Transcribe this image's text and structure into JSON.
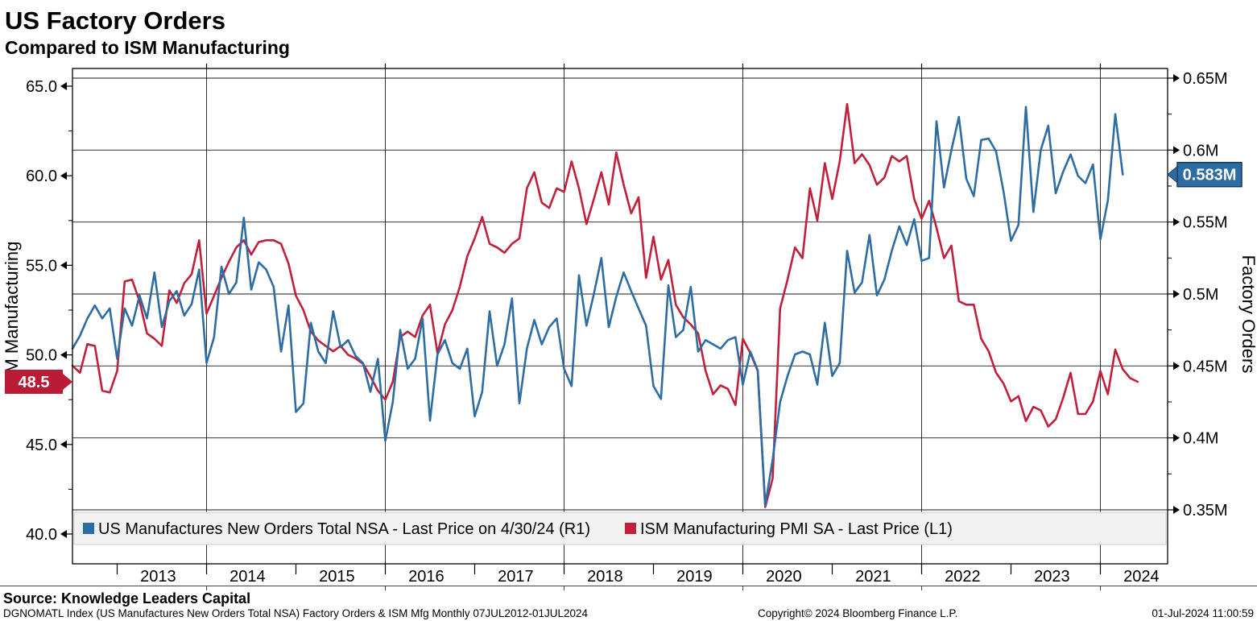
{
  "title": "US Factory Orders",
  "subtitle": "Compared to ISM Manufacturing",
  "left_axis": {
    "title": "ISM Manufacturing",
    "ticks": [
      {
        "label": "65.0",
        "value": 65
      },
      {
        "label": "60.0",
        "value": 60
      },
      {
        "label": "55.0",
        "value": 55
      },
      {
        "label": "50.0",
        "value": 50
      },
      {
        "label": "45.0",
        "value": 45
      },
      {
        "label": "40.0",
        "value": 40
      }
    ],
    "minor_tick_values": [
      62.5,
      57.5,
      52.5,
      47.5,
      42.5
    ],
    "last_badge": {
      "label": "48.5",
      "value": 48.5,
      "color": "#b91c34"
    }
  },
  "right_axis": {
    "title": "Factory Orders",
    "ticks": [
      {
        "label": "0.65M",
        "value": 0.65
      },
      {
        "label": "0.6M",
        "value": 0.6
      },
      {
        "label": "0.55M",
        "value": 0.55
      },
      {
        "label": "0.5M",
        "value": 0.5
      },
      {
        "label": "0.45M",
        "value": 0.45
      },
      {
        "label": "0.4M",
        "value": 0.4
      },
      {
        "label": "0.35M",
        "value": 0.35
      }
    ],
    "minor_tick_values": [
      0.625,
      0.575,
      0.525,
      0.475,
      0.425,
      0.375
    ],
    "last_badge": {
      "label": "0.583M",
      "value": 0.583,
      "color": "#2e6da4",
      "border": "#14395e"
    }
  },
  "x_axis": {
    "years": [
      2013,
      2014,
      2015,
      2016,
      2017,
      2018,
      2019,
      2020,
      2021,
      2022,
      2023,
      2024
    ],
    "gridline_months": [
      "2014-01",
      "2016-01",
      "2018-01",
      "2020-01",
      "2022-01",
      "2024-01"
    ]
  },
  "legend": [
    {
      "label": "US Manufactures New Orders Total NSA - Last Price on 4/30/24 (R1)",
      "color": "#2e6da4"
    },
    {
      "label": "ISM Manufacturing PMI SA - Last Price (L1)",
      "color": "#c0203a"
    }
  ],
  "footer": {
    "source": "Source: Knowledge Leaders Capital",
    "description": "DGNOMATL Index (US Manufactures New Orders Total NSA) Factory Orders & ISM Mfg  Monthly 07JUL2012-01JUL2024",
    "copyright": "Copyright© 2024 Bloomberg Finance L.P.",
    "timestamp": "01-Jul-2024 11:00:59"
  },
  "chart_data": {
    "type": "line",
    "start": "2012-07",
    "frequency": "monthly",
    "grid": "on",
    "legend_position": "bottom-inside",
    "ylim_left": [
      40,
      65
    ],
    "ylim_right": [
      0.35,
      0.65
    ],
    "series": [
      {
        "name": "ISM Manufacturing PMI SA - Last Price (L1)",
        "axis": "left",
        "color": "#c0203a",
        "values": [
          49.4,
          49.0,
          50.6,
          50.5,
          48.0,
          47.9,
          49.1,
          54.1,
          54.2,
          53.0,
          51.2,
          50.9,
          50.5,
          53.6,
          52.9,
          54.0,
          54.5,
          56.4,
          52.3,
          53.3,
          54.3,
          55.2,
          56.0,
          56.4,
          55.6,
          56.3,
          56.4,
          56.4,
          56.2,
          55.1,
          53.3,
          52.5,
          51.3,
          50.8,
          50.5,
          50.2,
          50.5,
          50.0,
          49.8,
          49.5,
          48.8,
          48.0,
          47.5,
          48.5,
          51.0,
          51.3,
          51.0,
          52.2,
          52.8,
          50.1,
          51.7,
          52.5,
          53.8,
          55.5,
          56.5,
          57.7,
          56.2,
          56.0,
          55.7,
          56.2,
          56.5,
          59.3,
          60.2,
          58.5,
          58.2,
          59.3,
          59.1,
          60.8,
          59.3,
          57.3,
          58.7,
          60.2,
          58.4,
          61.3,
          59.5,
          57.9,
          58.8,
          54.3,
          56.6,
          54.2,
          55.3,
          52.8,
          52.1,
          51.7,
          51.2,
          49.1,
          47.8,
          48.3,
          48.1,
          47.2,
          50.9,
          50.1,
          49.1,
          41.5,
          43.1,
          52.6,
          54.2,
          56.0,
          55.4,
          59.3,
          57.5,
          60.7,
          58.7,
          60.8,
          64.0,
          60.7,
          61.2,
          60.6,
          59.5,
          59.9,
          61.1,
          60.8,
          61.1,
          58.7,
          57.6,
          58.6,
          57.1,
          55.4,
          56.1,
          53.0,
          52.8,
          52.8,
          50.9,
          50.2,
          49.0,
          48.4,
          47.4,
          47.7,
          46.3,
          47.1,
          46.9,
          46.0,
          46.4,
          47.6,
          49.0,
          46.7,
          46.7,
          47.4,
          49.1,
          47.8,
          50.3,
          49.2,
          48.7,
          48.5
        ]
      },
      {
        "name": "US Manufactures New Orders Total NSA - Last Price on 4/30/24 (R1)",
        "axis": "right",
        "color": "#2e6da4",
        "values": [
          0.462,
          0.471,
          0.483,
          0.492,
          0.483,
          0.49,
          0.455,
          0.49,
          0.478,
          0.499,
          0.483,
          0.515,
          0.477,
          0.495,
          0.502,
          0.485,
          0.493,
          0.517,
          0.452,
          0.47,
          0.519,
          0.5,
          0.508,
          0.553,
          0.503,
          0.522,
          0.517,
          0.505,
          0.46,
          0.492,
          0.418,
          0.424,
          0.48,
          0.46,
          0.452,
          0.488,
          0.463,
          0.468,
          0.457,
          0.452,
          0.432,
          0.455,
          0.398,
          0.425,
          0.475,
          0.448,
          0.455,
          0.483,
          0.412,
          0.458,
          0.468,
          0.452,
          0.448,
          0.462,
          0.415,
          0.432,
          0.488,
          0.45,
          0.465,
          0.497,
          0.424,
          0.462,
          0.482,
          0.465,
          0.477,
          0.483,
          0.448,
          0.436,
          0.513,
          0.478,
          0.5,
          0.525,
          0.477,
          0.498,
          0.515,
          0.502,
          0.49,
          0.478,
          0.436,
          0.427,
          0.506,
          0.47,
          0.475,
          0.505,
          0.46,
          0.468,
          0.465,
          0.462,
          0.468,
          0.47,
          0.437,
          0.46,
          0.447,
          0.353,
          0.385,
          0.425,
          0.443,
          0.458,
          0.46,
          0.458,
          0.437,
          0.48,
          0.443,
          0.452,
          0.53,
          0.501,
          0.508,
          0.541,
          0.499,
          0.51,
          0.53,
          0.547,
          0.534,
          0.552,
          0.523,
          0.525,
          0.62,
          0.574,
          0.6,
          0.623,
          0.58,
          0.568,
          0.607,
          0.608,
          0.599,
          0.571,
          0.537,
          0.548,
          0.63,
          0.557,
          0.6,
          0.617,
          0.57,
          0.585,
          0.597,
          0.582,
          0.577,
          0.59,
          0.538,
          0.565,
          0.625,
          0.583
        ]
      }
    ]
  }
}
